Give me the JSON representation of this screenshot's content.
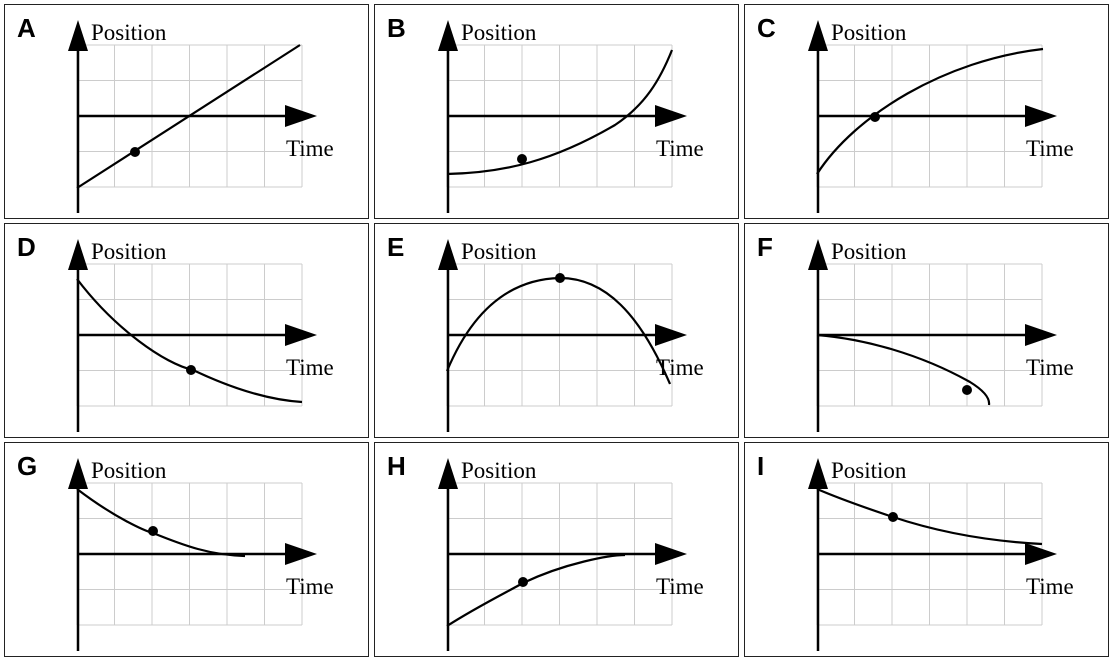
{
  "axis_labels": {
    "y": "Position",
    "x": "Time"
  },
  "colors": {
    "line": "#000000",
    "grid": "#cccccc",
    "border": "#222222",
    "background": "#ffffff"
  },
  "panels": [
    {
      "letter": "A",
      "curve": "increasing-linear",
      "dot": "on-line-below-axis"
    },
    {
      "letter": "B",
      "curve": "increasing-concave-up",
      "dot": "on-curve-below-axis"
    },
    {
      "letter": "C",
      "curve": "increasing-concave-down",
      "dot": "at-time-axis-crossing"
    },
    {
      "letter": "D",
      "curve": "decreasing-concave-up",
      "dot": "on-curve-below-axis"
    },
    {
      "letter": "E",
      "curve": "concave-down-arch",
      "dot": "at-peak"
    },
    {
      "letter": "F",
      "curve": "decreasing-concave-down",
      "dot": "on-curve-below-axis"
    },
    {
      "letter": "G",
      "curve": "decreasing-to-zero",
      "dot": "on-curve-above-axis"
    },
    {
      "letter": "H",
      "curve": "increasing-to-zero",
      "dot": "on-curve-below-axis"
    },
    {
      "letter": "I",
      "curve": "decreasing-leveling-above-axis",
      "dot": "on-curve-above-axis"
    }
  ]
}
